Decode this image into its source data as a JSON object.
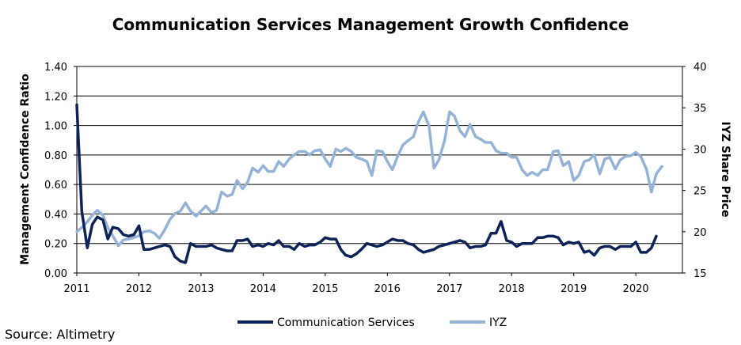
{
  "chart_data": {
    "type": "line",
    "title": "Communication Services Management Growth Confidence",
    "ylabel": "Management Confidence Ratio",
    "y2label": "IYZ Share Price",
    "source": "Source: Altimetry",
    "grid": true,
    "legend_position": "bottom",
    "ylim": [
      0,
      1.4
    ],
    "y2lim": [
      15,
      40
    ],
    "xlim": [
      2011.0,
      2020.75
    ],
    "x_ticks": [
      "2011",
      "2012",
      "2013",
      "2014",
      "2015",
      "2016",
      "2017",
      "2018",
      "2019",
      "2020"
    ],
    "y_ticks": [
      "0.00",
      "0.20",
      "0.40",
      "0.60",
      "0.80",
      "1.00",
      "1.20",
      "1.40"
    ],
    "y2_ticks": [
      "15",
      "20",
      "25",
      "30",
      "35",
      "40"
    ],
    "series": [
      {
        "name": "Communication Services",
        "axis": "left",
        "color": "#0d2257",
        "points": [
          [
            2011.0,
            1.14
          ],
          [
            2011.08,
            0.42
          ],
          [
            2011.17,
            0.17
          ],
          [
            2011.25,
            0.33
          ],
          [
            2011.33,
            0.38
          ],
          [
            2011.42,
            0.36
          ],
          [
            2011.5,
            0.23
          ],
          [
            2011.58,
            0.31
          ],
          [
            2011.67,
            0.3
          ],
          [
            2011.75,
            0.26
          ],
          [
            2011.83,
            0.25
          ],
          [
            2011.92,
            0.26
          ],
          [
            2012.0,
            0.32
          ],
          [
            2012.08,
            0.16
          ],
          [
            2012.17,
            0.16
          ],
          [
            2012.25,
            0.17
          ],
          [
            2012.33,
            0.18
          ],
          [
            2012.42,
            0.19
          ],
          [
            2012.5,
            0.18
          ],
          [
            2012.58,
            0.11
          ],
          [
            2012.67,
            0.08
          ],
          [
            2012.75,
            0.07
          ],
          [
            2012.83,
            0.2
          ],
          [
            2012.92,
            0.18
          ],
          [
            2013.0,
            0.18
          ],
          [
            2013.08,
            0.18
          ],
          [
            2013.17,
            0.19
          ],
          [
            2013.25,
            0.17
          ],
          [
            2013.33,
            0.16
          ],
          [
            2013.42,
            0.15
          ],
          [
            2013.5,
            0.15
          ],
          [
            2013.58,
            0.22
          ],
          [
            2013.67,
            0.22
          ],
          [
            2013.75,
            0.23
          ],
          [
            2013.83,
            0.18
          ],
          [
            2013.92,
            0.19
          ],
          [
            2014.0,
            0.18
          ],
          [
            2014.08,
            0.2
          ],
          [
            2014.17,
            0.19
          ],
          [
            2014.25,
            0.22
          ],
          [
            2014.33,
            0.18
          ],
          [
            2014.42,
            0.18
          ],
          [
            2014.5,
            0.16
          ],
          [
            2014.58,
            0.2
          ],
          [
            2014.67,
            0.18
          ],
          [
            2014.75,
            0.19
          ],
          [
            2014.83,
            0.19
          ],
          [
            2014.92,
            0.21
          ],
          [
            2015.0,
            0.24
          ],
          [
            2015.08,
            0.23
          ],
          [
            2015.17,
            0.23
          ],
          [
            2015.25,
            0.16
          ],
          [
            2015.33,
            0.12
          ],
          [
            2015.42,
            0.11
          ],
          [
            2015.5,
            0.13
          ],
          [
            2015.58,
            0.16
          ],
          [
            2015.67,
            0.2
          ],
          [
            2015.75,
            0.19
          ],
          [
            2015.83,
            0.18
          ],
          [
            2015.92,
            0.19
          ],
          [
            2016.0,
            0.21
          ],
          [
            2016.08,
            0.23
          ],
          [
            2016.17,
            0.22
          ],
          [
            2016.25,
            0.22
          ],
          [
            2016.33,
            0.2
          ],
          [
            2016.42,
            0.19
          ],
          [
            2016.5,
            0.16
          ],
          [
            2016.58,
            0.14
          ],
          [
            2016.67,
            0.15
          ],
          [
            2016.75,
            0.16
          ],
          [
            2016.83,
            0.18
          ],
          [
            2016.92,
            0.19
          ],
          [
            2017.0,
            0.2
          ],
          [
            2017.08,
            0.21
          ],
          [
            2017.17,
            0.22
          ],
          [
            2017.25,
            0.21
          ],
          [
            2017.33,
            0.17
          ],
          [
            2017.42,
            0.18
          ],
          [
            2017.5,
            0.18
          ],
          [
            2017.58,
            0.19
          ],
          [
            2017.67,
            0.27
          ],
          [
            2017.75,
            0.27
          ],
          [
            2017.83,
            0.35
          ],
          [
            2017.92,
            0.22
          ],
          [
            2018.0,
            0.21
          ],
          [
            2018.08,
            0.18
          ],
          [
            2018.17,
            0.2
          ],
          [
            2018.25,
            0.2
          ],
          [
            2018.33,
            0.2
          ],
          [
            2018.42,
            0.24
          ],
          [
            2018.5,
            0.24
          ],
          [
            2018.58,
            0.25
          ],
          [
            2018.67,
            0.25
          ],
          [
            2018.75,
            0.24
          ],
          [
            2018.83,
            0.19
          ],
          [
            2018.92,
            0.21
          ],
          [
            2019.0,
            0.2
          ],
          [
            2019.08,
            0.21
          ],
          [
            2019.17,
            0.14
          ],
          [
            2019.25,
            0.15
          ],
          [
            2019.33,
            0.12
          ],
          [
            2019.42,
            0.17
          ],
          [
            2019.5,
            0.18
          ],
          [
            2019.58,
            0.18
          ],
          [
            2019.67,
            0.16
          ],
          [
            2019.75,
            0.18
          ],
          [
            2019.83,
            0.18
          ],
          [
            2019.92,
            0.18
          ],
          [
            2020.0,
            0.21
          ],
          [
            2020.08,
            0.14
          ],
          [
            2020.17,
            0.14
          ],
          [
            2020.25,
            0.17
          ],
          [
            2020.33,
            0.25
          ]
        ]
      },
      {
        "name": "IYZ",
        "axis": "right",
        "color": "#95b3d7",
        "points": [
          [
            2011.0,
            20.0
          ],
          [
            2011.08,
            20.5
          ],
          [
            2011.17,
            21.2
          ],
          [
            2011.25,
            22.0
          ],
          [
            2011.33,
            22.6
          ],
          [
            2011.42,
            22.0
          ],
          [
            2011.5,
            20.5
          ],
          [
            2011.58,
            19.5
          ],
          [
            2011.67,
            18.3
          ],
          [
            2011.75,
            19.0
          ],
          [
            2011.83,
            19.1
          ],
          [
            2011.92,
            19.3
          ],
          [
            2012.0,
            19.5
          ],
          [
            2012.08,
            20.0
          ],
          [
            2012.17,
            20.1
          ],
          [
            2012.25,
            19.8
          ],
          [
            2012.33,
            19.2
          ],
          [
            2012.42,
            20.3
          ],
          [
            2012.5,
            21.5
          ],
          [
            2012.58,
            22.2
          ],
          [
            2012.67,
            22.5
          ],
          [
            2012.75,
            23.5
          ],
          [
            2012.83,
            22.5
          ],
          [
            2012.92,
            21.9
          ],
          [
            2013.0,
            22.5
          ],
          [
            2013.08,
            23.1
          ],
          [
            2013.17,
            22.3
          ],
          [
            2013.25,
            22.6
          ],
          [
            2013.33,
            24.8
          ],
          [
            2013.42,
            24.3
          ],
          [
            2013.5,
            24.5
          ],
          [
            2013.58,
            26.2
          ],
          [
            2013.67,
            25.2
          ],
          [
            2013.75,
            26.0
          ],
          [
            2013.83,
            27.7
          ],
          [
            2013.92,
            27.2
          ],
          [
            2014.0,
            28.0
          ],
          [
            2014.08,
            27.3
          ],
          [
            2014.17,
            27.3
          ],
          [
            2014.25,
            28.5
          ],
          [
            2014.33,
            27.9
          ],
          [
            2014.42,
            28.8
          ],
          [
            2014.5,
            29.3
          ],
          [
            2014.58,
            29.7
          ],
          [
            2014.67,
            29.7
          ],
          [
            2014.75,
            29.3
          ],
          [
            2014.83,
            29.8
          ],
          [
            2014.92,
            29.9
          ],
          [
            2015.0,
            28.8
          ],
          [
            2015.08,
            27.9
          ],
          [
            2015.17,
            30.0
          ],
          [
            2015.25,
            29.7
          ],
          [
            2015.33,
            30.1
          ],
          [
            2015.42,
            29.7
          ],
          [
            2015.5,
            29.0
          ],
          [
            2015.58,
            28.8
          ],
          [
            2015.67,
            28.5
          ],
          [
            2015.75,
            26.8
          ],
          [
            2015.83,
            29.8
          ],
          [
            2015.92,
            29.7
          ],
          [
            2016.0,
            28.5
          ],
          [
            2016.08,
            27.5
          ],
          [
            2016.17,
            29.2
          ],
          [
            2016.25,
            30.5
          ],
          [
            2016.33,
            31.0
          ],
          [
            2016.42,
            31.5
          ],
          [
            2016.5,
            33.3
          ],
          [
            2016.58,
            34.5
          ],
          [
            2016.67,
            32.8
          ],
          [
            2016.75,
            27.7
          ],
          [
            2016.83,
            28.7
          ],
          [
            2016.92,
            31.0
          ],
          [
            2017.0,
            34.5
          ],
          [
            2017.08,
            34.0
          ],
          [
            2017.17,
            32.2
          ],
          [
            2017.25,
            31.5
          ],
          [
            2017.33,
            33.0
          ],
          [
            2017.42,
            31.5
          ],
          [
            2017.5,
            31.2
          ],
          [
            2017.58,
            30.8
          ],
          [
            2017.67,
            30.8
          ],
          [
            2017.75,
            29.8
          ],
          [
            2017.83,
            29.5
          ],
          [
            2017.92,
            29.5
          ],
          [
            2018.0,
            29.0
          ],
          [
            2018.08,
            29.0
          ],
          [
            2018.17,
            27.5
          ],
          [
            2018.25,
            26.8
          ],
          [
            2018.33,
            27.2
          ],
          [
            2018.42,
            26.8
          ],
          [
            2018.5,
            27.5
          ],
          [
            2018.58,
            27.5
          ],
          [
            2018.67,
            29.7
          ],
          [
            2018.75,
            29.8
          ],
          [
            2018.83,
            28.0
          ],
          [
            2018.92,
            28.5
          ],
          [
            2019.0,
            26.2
          ],
          [
            2019.08,
            26.8
          ],
          [
            2019.17,
            28.5
          ],
          [
            2019.25,
            28.7
          ],
          [
            2019.33,
            29.3
          ],
          [
            2019.42,
            27.0
          ],
          [
            2019.5,
            28.8
          ],
          [
            2019.58,
            29.0
          ],
          [
            2019.67,
            27.6
          ],
          [
            2019.75,
            28.7
          ],
          [
            2019.83,
            29.1
          ],
          [
            2019.92,
            29.2
          ],
          [
            2020.0,
            29.6
          ],
          [
            2020.08,
            29.1
          ],
          [
            2020.17,
            27.6
          ],
          [
            2020.25,
            24.8
          ],
          [
            2020.33,
            27.0
          ],
          [
            2020.42,
            27.9
          ]
        ]
      }
    ]
  }
}
